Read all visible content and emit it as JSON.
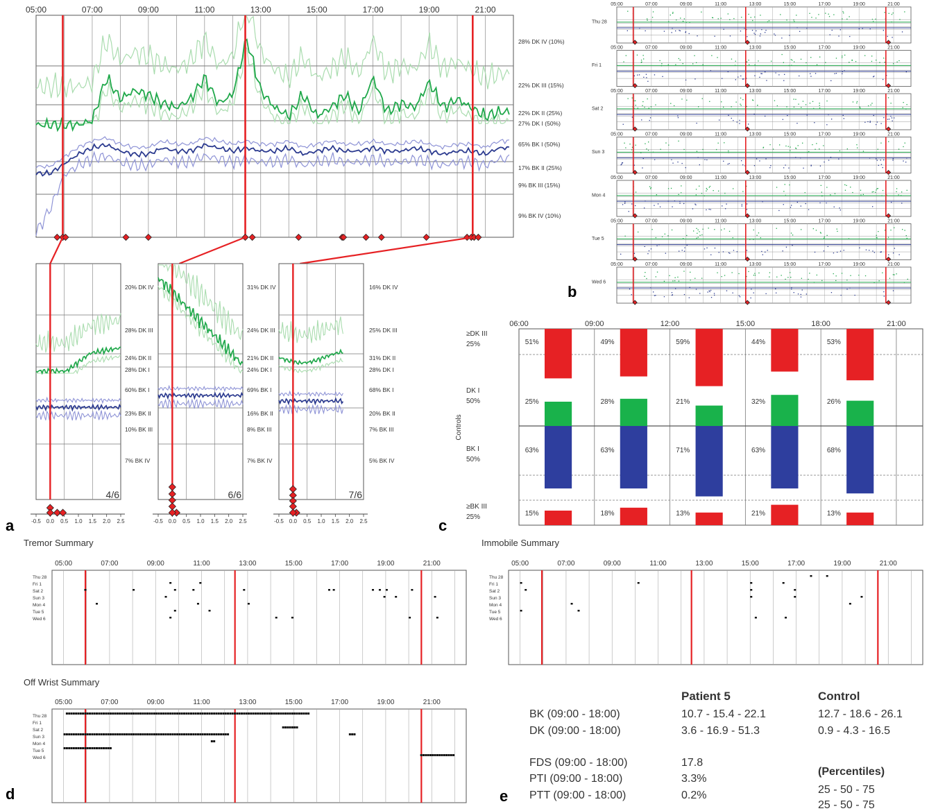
{
  "colors": {
    "grid": "#8c8c8c",
    "dk": "#1fa84a",
    "dk_light": "#a9dcae",
    "bk": "#2b3a8f",
    "bk_light": "#8e93d6",
    "marker": "#e62124",
    "red_bar": "#e62124",
    "green_bar": "#19b24b",
    "blue_bar": "#2e3e9e",
    "text": "#333333"
  },
  "panel_letters": [
    "a",
    "b",
    "c",
    "d",
    "e"
  ],
  "panel_a": {
    "hours": [
      "05:00",
      "07:00",
      "09:00",
      "11:00",
      "13:00",
      "15:00",
      "17:00",
      "19:00",
      "21:00"
    ],
    "right_labels": [
      "28% DK IV (10%)",
      "22% DK III (15%)",
      "22% DK II (25%)",
      "27% DK I (50%)",
      "65% BK I (50%)",
      "17% BK II (25%)",
      "9% BK III (15%)",
      "9% BK IV (10%)"
    ],
    "medication_markers": [
      5.75,
      5.95,
      6.05,
      8.2,
      9.0,
      12.45,
      12.7,
      14.35,
      15.9,
      15.95,
      16.75,
      17.3,
      18.9,
      20.35,
      20.5,
      20.6,
      20.75
    ]
  },
  "chart_data": [
    {
      "type": "line",
      "title": "",
      "xlabel": "",
      "ylabel": "",
      "x": [
        5,
        5.5,
        6,
        6.5,
        7,
        7.5,
        8,
        8.5,
        9,
        9.5,
        10,
        10.5,
        11,
        11.5,
        12,
        12.5,
        13,
        13.5,
        14,
        14.5,
        15,
        15.5,
        16,
        16.5,
        17,
        17.5,
        18,
        18.5,
        19,
        19.5,
        20,
        20.5,
        21,
        21.5
      ],
      "xlim": [
        5,
        22
      ],
      "series": [
        {
          "name": "DK",
          "values": [
            27,
            27,
            27,
            27,
            28,
            38,
            33,
            35,
            34,
            32,
            31,
            33,
            38,
            32,
            34,
            47,
            35,
            31,
            29,
            34,
            29,
            31,
            34,
            30,
            38,
            30,
            32,
            31,
            37,
            31,
            33,
            31,
            29,
            30
          ]
        },
        {
          "name": "BK",
          "values": [
            59,
            59,
            62,
            65,
            67,
            68,
            66,
            65,
            65,
            67,
            66,
            66,
            68,
            67,
            66,
            67,
            66,
            66,
            67,
            65,
            66,
            67,
            66,
            66,
            67,
            66,
            66,
            67,
            66,
            65,
            66,
            66,
            65,
            67
          ]
        }
      ],
      "percentile_lines": [
        "DK IV",
        "DK III",
        "DK II",
        "DK I",
        "BK I",
        "BK II",
        "BK III",
        "BK IV"
      ]
    },
    {
      "type": "bar",
      "title": "",
      "categories": [
        "06:00-09:00",
        "09:00-12:00",
        "12:00-15:00",
        "15:00-18:00",
        "18:00-21:00"
      ],
      "row_labels": [
        "≥DK III\n25%",
        "DK I\n50%",
        "BK I\n50%",
        "≥BK III\n25%"
      ],
      "x_ticks": [
        "06:00",
        "09:00",
        "12:00",
        "15:00",
        "18:00",
        "21:00"
      ],
      "side_label": "Controls",
      "series": [
        {
          "name": "≥DK III",
          "values": [
            51,
            49,
            59,
            44,
            53
          ],
          "labels": [
            "51%",
            "49%",
            "59%",
            "44%",
            "53%"
          ]
        },
        {
          "name": "DK I",
          "values": [
            25,
            28,
            21,
            32,
            26
          ],
          "labels": [
            "25%",
            "28%",
            "21%",
            "32%",
            "26%"
          ]
        },
        {
          "name": "BK I",
          "values": [
            63,
            63,
            71,
            63,
            68
          ],
          "labels": [
            "63%",
            "63%",
            "71%",
            "63%",
            "68%"
          ]
        },
        {
          "name": "≥BK III",
          "values": [
            15,
            18,
            13,
            21,
            13
          ],
          "labels": [
            "15%",
            "18%",
            "13%",
            "21%",
            "13%"
          ]
        }
      ]
    }
  ],
  "panel_a_zooms": [
    {
      "date": "4/6",
      "labels": [
        "20% DK IV",
        "28% DK III",
        "24% DK II",
        "28% DK I",
        "60% BK I",
        "23% BK II",
        "10% BK III",
        "7% BK IV"
      ],
      "ticks": [
        "-0.5",
        "0.0",
        "0.5",
        "1.0",
        "1.5",
        "2.0",
        "2.5"
      ]
    },
    {
      "date": "6/6",
      "labels": [
        "31% DK IV",
        "24% DK III",
        "21% DK II",
        "24% DK I",
        "69% BK I",
        "16% BK II",
        "8% BK III",
        "7% BK IV"
      ],
      "ticks": [
        "-0.5",
        "0.0",
        "0.5",
        "1.0",
        "1.5",
        "2.0",
        "2.5"
      ]
    },
    {
      "date": "7/6",
      "labels": [
        "16% DK IV",
        "25% DK III",
        "31% DK II",
        "28% DK I",
        "68% BK I",
        "20% BK II",
        "7% BK III",
        "5% BK IV"
      ],
      "ticks": [
        "-0.5",
        "0.0",
        "0.5",
        "1.0",
        "1.5",
        "2.0",
        "2.5"
      ]
    }
  ],
  "panel_b": {
    "hours": [
      "05:00",
      "07:00",
      "09:00",
      "11:00",
      "13:00",
      "15:00",
      "17:00",
      "19:00",
      "21:00"
    ],
    "days": [
      "Thu 28",
      "Fri 1",
      "Sat 2",
      "Sun 3",
      "Mon 4",
      "Tue 5",
      "Wed 6"
    ]
  },
  "panel_d": {
    "tremor_title": "Tremor Summary",
    "immobile_title": "Immobile Summary",
    "offwrist_title": "Off Wrist Summary",
    "hours": [
      "05:00",
      "07:00",
      "09:00",
      "11:00",
      "13:00",
      "15:00",
      "17:00",
      "19:00",
      "21:00"
    ],
    "days": [
      "Thu  28",
      "Fri    1",
      "Sat   2",
      "Sun   3",
      "Mon  4",
      "Tue   5",
      "Wed  6"
    ],
    "tremor_events": [
      [
        1,
        9.6
      ],
      [
        1,
        10.9
      ],
      [
        2,
        5.9
      ],
      [
        2,
        8.0
      ],
      [
        2,
        9.8
      ],
      [
        2,
        10.6
      ],
      [
        2,
        12.8
      ],
      [
        2,
        16.5
      ],
      [
        2,
        16.7
      ],
      [
        2,
        18.4
      ],
      [
        2,
        18.7
      ],
      [
        2,
        19.0
      ],
      [
        2,
        20.1
      ],
      [
        3,
        9.4
      ],
      [
        3,
        18.9
      ],
      [
        3,
        19.4
      ],
      [
        3,
        21.1
      ],
      [
        4,
        6.4
      ],
      [
        4,
        10.8
      ],
      [
        4,
        13.0
      ],
      [
        5,
        9.8
      ],
      [
        5,
        11.3
      ],
      [
        6,
        9.6
      ],
      [
        6,
        14.2
      ],
      [
        6,
        14.9
      ],
      [
        6,
        20.0
      ],
      [
        6,
        21.2
      ]
    ],
    "immobile_events": [
      [
        0,
        17.6
      ],
      [
        0,
        18.3
      ],
      [
        1,
        5.0
      ],
      [
        1,
        10.1
      ],
      [
        1,
        15.0
      ],
      [
        1,
        16.4
      ],
      [
        2,
        5.2
      ],
      [
        2,
        15.0
      ],
      [
        2,
        16.9
      ],
      [
        3,
        15.0
      ],
      [
        3,
        16.9
      ],
      [
        3,
        19.8
      ],
      [
        4,
        7.2
      ],
      [
        4,
        19.3
      ],
      [
        5,
        5.0
      ],
      [
        5,
        7.5
      ],
      [
        6,
        15.2
      ],
      [
        6,
        16.5
      ]
    ],
    "offwrist_segments": [
      [
        0,
        5.1,
        15.6
      ],
      [
        2,
        14.5,
        15.1
      ],
      [
        3,
        5.0,
        12.1
      ],
      [
        4,
        11.4,
        11.5
      ],
      [
        3,
        17.4,
        17.6
      ],
      [
        5,
        5.0,
        7.0
      ],
      [
        6,
        20.5,
        22.0
      ]
    ]
  },
  "panel_e": {
    "patient_header": "Patient 5",
    "control_header": "Control",
    "rows": [
      {
        "label": "BK (09:00 - 18:00)",
        "patient": "10.7 - 15.4 - 22.1",
        "control": "12.7 - 18.6 - 26.1"
      },
      {
        "label": "DK (09:00 - 18:00)",
        "patient": "3.6 - 16.9 - 51.3",
        "control": "0.9 - 4.3 - 16.5"
      },
      {
        "label": "FDS (09:00 - 18:00)",
        "patient": "17.8",
        "control": ""
      },
      {
        "label": "PTI (09:00 - 18:00)",
        "patient": "3.3%",
        "control": ""
      },
      {
        "label": "PTT (09:00 - 18:00)",
        "patient": "0.2%",
        "control": ""
      }
    ],
    "percentiles_header": "(Percentiles)",
    "percentile_rows": [
      "25 - 50 - 75",
      "25 - 50 - 75"
    ]
  }
}
